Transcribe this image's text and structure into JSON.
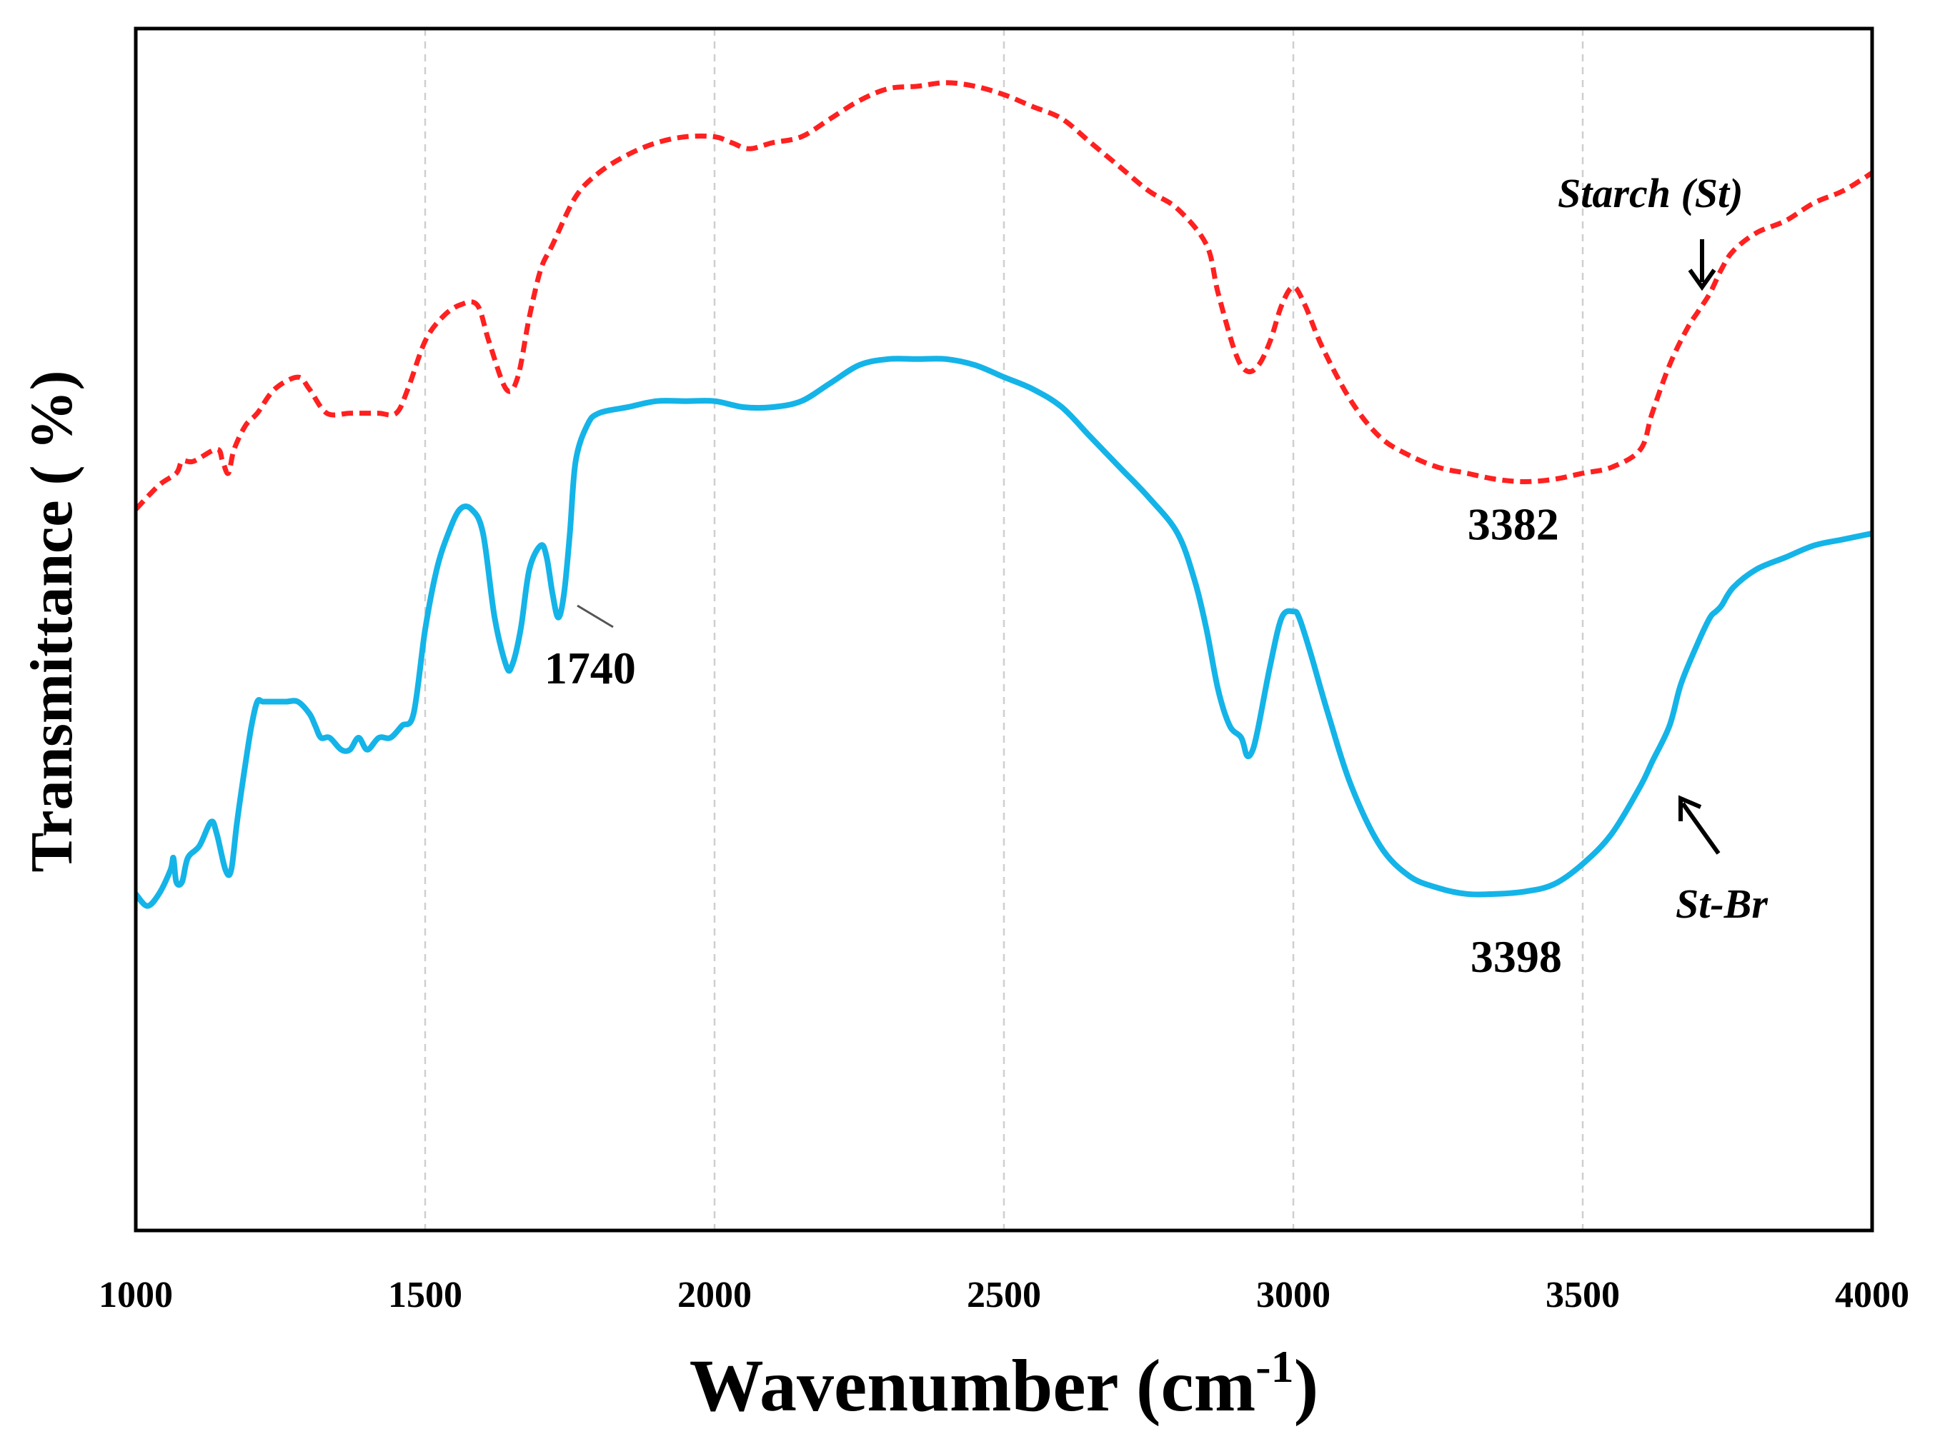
{
  "chart_data": {
    "type": "line",
    "title": "",
    "xlabel": "Wavenumber (cm",
    "xlabel_sup": "-1",
    "xlabel_close": ")",
    "ylabel": "Transmittance ( %)",
    "xlim": [
      1000,
      4000
    ],
    "ylim": [
      0,
      100
    ],
    "x_ticks": [
      1000,
      1500,
      2000,
      2500,
      3000,
      3500,
      4000
    ],
    "x_tick_labels": [
      "1000",
      "1500",
      "2000",
      "2500",
      "3000",
      "3500",
      "4000"
    ],
    "grid": "vertical dashed",
    "series": [
      {
        "name": "Starch (St)",
        "color": "#ff2020",
        "style": "dashed",
        "x": [
          1000,
          1040,
          1070,
          1080,
          1100,
          1140,
          1150,
          1160,
          1170,
          1190,
          1210,
          1240,
          1280,
          1300,
          1330,
          1370,
          1400,
          1420,
          1450,
          1470,
          1500,
          1530,
          1560,
          1590,
          1610,
          1640,
          1660,
          1680,
          1700,
          1720,
          1760,
          1800,
          1850,
          1900,
          1950,
          2000,
          2030,
          2060,
          2100,
          2150,
          2200,
          2250,
          2300,
          2350,
          2400,
          2450,
          2500,
          2550,
          2600,
          2650,
          2700,
          2750,
          2800,
          2850,
          2870,
          2900,
          2920,
          2940,
          2960,
          2980,
          3000,
          3020,
          3050,
          3100,
          3150,
          3200,
          3250,
          3300,
          3350,
          3400,
          3450,
          3500,
          3550,
          3600,
          3620,
          3650,
          3680,
          3700,
          3720,
          3740,
          3760,
          3800,
          3850,
          3900,
          3950,
          4000
        ],
        "y": [
          60,
          62,
          63,
          64,
          64,
          65,
          64,
          63,
          65,
          67,
          68,
          70,
          71,
          70,
          68,
          68,
          68,
          68,
          68,
          70,
          74,
          76,
          77,
          77,
          74,
          70,
          71,
          76,
          80,
          82,
          86,
          88,
          89.5,
          90.5,
          91,
          91,
          90.5,
          90,
          90.5,
          91,
          92.5,
          94,
          95,
          95.2,
          95.5,
          95.2,
          94.5,
          93.5,
          92.5,
          90.5,
          88.5,
          86.5,
          85,
          82,
          78,
          73,
          71.5,
          72,
          74,
          77,
          78.5,
          77,
          73.5,
          69,
          66,
          64.5,
          63.5,
          63,
          62.5,
          62.3,
          62.5,
          63,
          63.5,
          65,
          68,
          72,
          75,
          76.5,
          78,
          80,
          81.5,
          83,
          84,
          85.5,
          86.5,
          88
        ]
      },
      {
        "name": "St-Br",
        "color": "#14b4e8",
        "style": "solid",
        "x": [
          1000,
          1020,
          1040,
          1060,
          1065,
          1070,
          1080,
          1090,
          1110,
          1130,
          1140,
          1155,
          1165,
          1175,
          1190,
          1200,
          1210,
          1220,
          1240,
          1260,
          1280,
          1300,
          1310,
          1320,
          1335,
          1355,
          1370,
          1385,
          1400,
          1420,
          1440,
          1460,
          1480,
          1500,
          1520,
          1540,
          1560,
          1580,
          1600,
          1620,
          1640,
          1650,
          1665,
          1680,
          1700,
          1710,
          1720,
          1730,
          1740,
          1750,
          1760,
          1780,
          1800,
          1850,
          1900,
          1950,
          2000,
          2050,
          2100,
          2150,
          2200,
          2250,
          2300,
          2350,
          2400,
          2450,
          2500,
          2550,
          2600,
          2650,
          2700,
          2750,
          2800,
          2830,
          2850,
          2870,
          2890,
          2910,
          2920,
          2930,
          2940,
          2960,
          2980,
          3000,
          3010,
          3030,
          3060,
          3100,
          3150,
          3200,
          3250,
          3300,
          3350,
          3400,
          3450,
          3500,
          3550,
          3600,
          3620,
          3650,
          3670,
          3700,
          3720,
          3730,
          3740,
          3760,
          3800,
          3850,
          3900,
          3950,
          4000
        ],
        "y": [
          28,
          27,
          28,
          30,
          31,
          29,
          29,
          31,
          32,
          34,
          33,
          30,
          30,
          34,
          39,
          42,
          44,
          44,
          44,
          44,
          44,
          43,
          42,
          41,
          41,
          40,
          40,
          41,
          40,
          41,
          41,
          42,
          43,
          50,
          55,
          58,
          60,
          60,
          58,
          51,
          47,
          47,
          50,
          55,
          57,
          56,
          53,
          51,
          53,
          58,
          64,
          67,
          68,
          68.5,
          69,
          69,
          69,
          68.5,
          68.5,
          69,
          70.5,
          72,
          72.5,
          72.5,
          72.5,
          72,
          71,
          70,
          68.5,
          66,
          63.5,
          61,
          58,
          54,
          50,
          45,
          42,
          41,
          39.5,
          40,
          42,
          47,
          51,
          51.5,
          51,
          48,
          43,
          37,
          32,
          29.5,
          28.5,
          28,
          28,
          28.2,
          28.8,
          30.5,
          33,
          37,
          39,
          42,
          45.5,
          49,
          51,
          51.5,
          52,
          53.5,
          55,
          56,
          57,
          57.5,
          58
        ]
      }
    ],
    "annotations": [
      {
        "text": "3382",
        "x": 3380,
        "y": 57.5
      },
      {
        "text": "1740",
        "x": 1785,
        "y": 45.5
      },
      {
        "text": "3398",
        "x": 3385,
        "y": 21.5
      }
    ],
    "legend_labels": {
      "starch": "Starch (St)",
      "stbr": "St-Br"
    }
  }
}
